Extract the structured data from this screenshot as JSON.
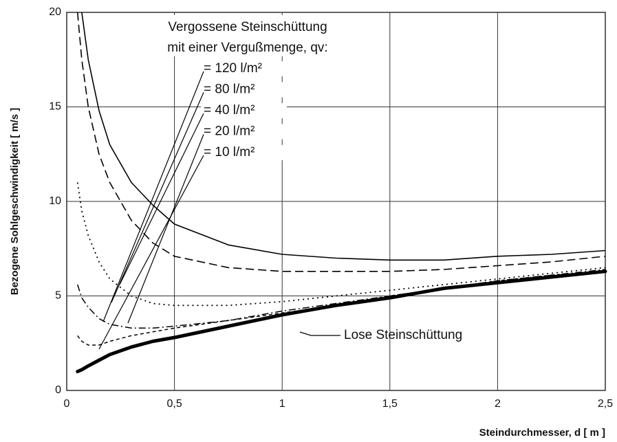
{
  "chart_data": {
    "type": "line",
    "title": "Vergossene Steinschüttung",
    "subtitle": "mit einer Vergußmenge, qv:",
    "x_label": "Steindurchmesser, d [ m ]",
    "y_label": "Bezogene Sohlgeschwindigkeit [ m/s ]",
    "x": [
      0.05,
      0.07,
      0.1,
      0.15,
      0.2,
      0.3,
      0.4,
      0.5,
      0.75,
      1,
      1.25,
      1.5,
      1.75,
      2,
      2.25,
      2.5
    ],
    "series": [
      {
        "name": "= 120 l/m²",
        "color": "#000000",
        "dash": "solid",
        "values": [
          null,
          20,
          17.5,
          14.8,
          13,
          11,
          9.8,
          8.8,
          7.7,
          7.2,
          7.0,
          6.9,
          6.9,
          7.1,
          7.2,
          7.4
        ]
      },
      {
        "name": "= 80 l/m²",
        "color": "#000000",
        "dash": "dashed",
        "values": [
          20,
          17.5,
          15,
          12.5,
          11,
          9.0,
          7.8,
          7.1,
          6.5,
          6.3,
          6.3,
          6.3,
          6.4,
          6.6,
          6.8,
          7.1
        ]
      },
      {
        "name": "= 40 l/m²",
        "color": "#000000",
        "dash": "dotted",
        "values": [
          11,
          9.5,
          8.2,
          6.8,
          5.9,
          5.0,
          4.6,
          4.5,
          4.5,
          4.7,
          5.0,
          5.3,
          5.6,
          5.9,
          6.2,
          6.5
        ]
      },
      {
        "name": "= 20 l/m²",
        "color": "#000000",
        "dash": "dashdot",
        "values": [
          5.6,
          4.9,
          4.4,
          3.8,
          3.5,
          3.3,
          3.3,
          3.4,
          3.7,
          4.2,
          4.6,
          5.0,
          5.4,
          5.8,
          6.1,
          6.4
        ]
      },
      {
        "name": "= 10 l/m²",
        "color": "#000000",
        "dash": "shortdash",
        "values": [
          2.9,
          2.6,
          2.4,
          2.4,
          2.6,
          2.9,
          3.1,
          3.3,
          3.7,
          4.1,
          4.5,
          5.0,
          5.4,
          5.8,
          6.1,
          6.3
        ]
      },
      {
        "name": "Lose Steinschüttung",
        "color": "#000000",
        "dash": "thick",
        "values": [
          1.0,
          1.1,
          1.3,
          1.6,
          1.9,
          2.3,
          2.6,
          2.8,
          3.4,
          4.0,
          4.5,
          4.9,
          5.4,
          5.7,
          6.0,
          6.3
        ]
      }
    ],
    "xlim": [
      0,
      2.5
    ],
    "ylim": [
      0,
      20
    ],
    "xticks": [
      0,
      {
        "value": 0.5,
        "label": "0,5"
      },
      1,
      {
        "value": 1.5,
        "label": "1,5"
      },
      2,
      {
        "value": 2.5,
        "label": "2,5"
      }
    ],
    "yticks": [
      0,
      5,
      10,
      15,
      20
    ],
    "grid": true
  }
}
